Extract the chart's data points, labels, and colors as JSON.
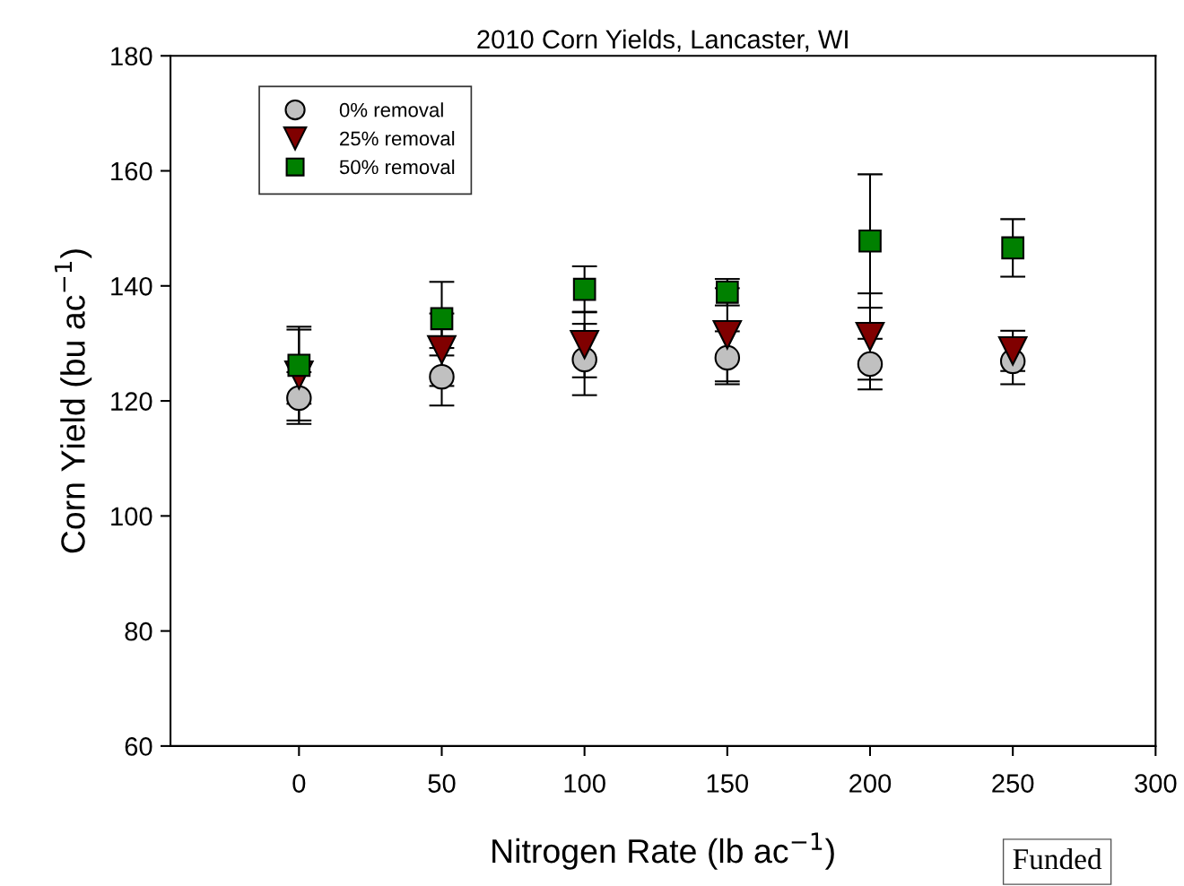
{
  "chart_data": {
    "type": "scatter",
    "title": "2010 Corn Yields, Lancaster, WI",
    "xlabel": "Nitrogen Rate (lb ac$^{−1}$)",
    "ylabel": "Corn Yield (bu ac$^{−1}$)",
    "x": [
      0,
      50,
      100,
      150,
      200,
      250
    ],
    "series": [
      {
        "name": "0% removal",
        "color": "#c0c0c0",
        "marker": "circle",
        "values": [
          120.5,
          124.2,
          127.2,
          127.5,
          126.4,
          126.9
        ],
        "errors": [
          4.5,
          5.0,
          6.2,
          4.6,
          4.4,
          4.0
        ]
      },
      {
        "name": "25% removal",
        "color": "#800000",
        "marker": "triangle",
        "values": [
          124.5,
          128.9,
          129.8,
          131.5,
          131.2,
          128.7
        ],
        "errors": [
          7.9,
          6.3,
          5.7,
          8.1,
          7.5,
          3.5
        ]
      },
      {
        "name": "50% removal",
        "color": "#008000",
        "marker": "square",
        "values": [
          126.2,
          134.3,
          139.4,
          138.9,
          147.8,
          146.6
        ],
        "errors": [
          6.7,
          6.4,
          4.0,
          2.3,
          11.6,
          5.0
        ]
      }
    ],
    "xlim": [
      -45,
      300
    ],
    "xticks": [
      0,
      50,
      100,
      150,
      200,
      250,
      300
    ],
    "ylim": [
      60,
      180
    ],
    "yticks": [
      60,
      80,
      100,
      120,
      140,
      160,
      180
    ],
    "grid": false,
    "legend": "top left",
    "annotations": [
      "Funded"
    ]
  }
}
